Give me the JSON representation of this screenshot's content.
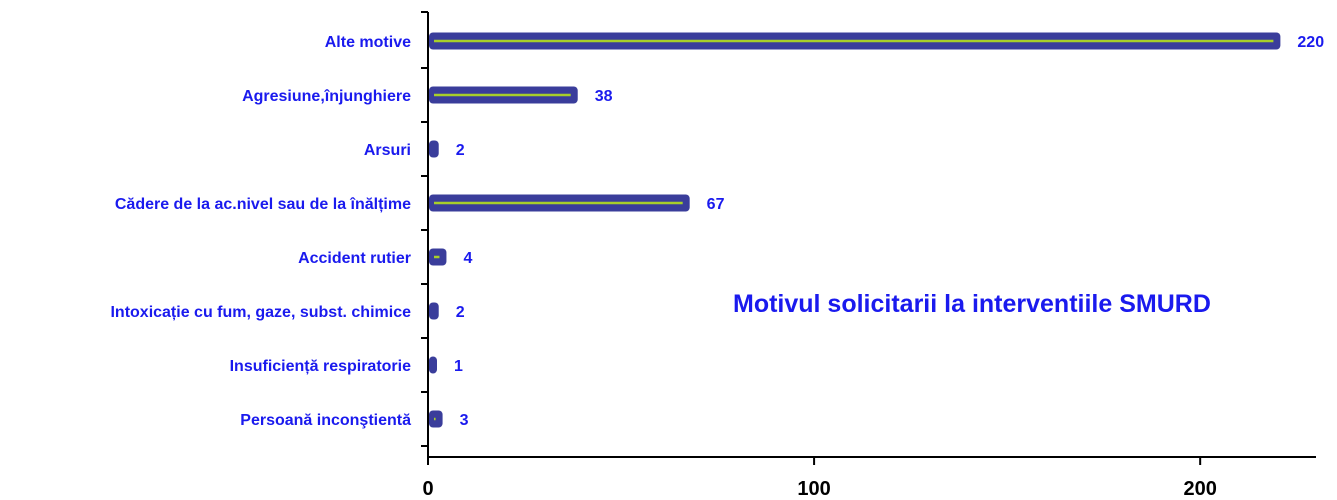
{
  "chart_data": {
    "type": "bar",
    "orientation": "horizontal",
    "title": "Motivul solicitarii la interventiile SMURD",
    "categories": [
      "Alte motive",
      "Agresiune,înjunghiere",
      "Arsuri",
      "Cădere de la ac.nivel sau de la înălțime",
      "Accident rutier",
      "Intoxicație cu fum, gaze, subst. chimice",
      "Insuficiență respiratorie",
      "Persoană inconştientă"
    ],
    "values": [
      220,
      38,
      2,
      67,
      4,
      2,
      1,
      3
    ],
    "value_labels": [
      "220",
      "38",
      "2",
      "67",
      "4",
      "2",
      "1",
      "3"
    ],
    "xlim": [
      0,
      230
    ],
    "xticks": [
      0,
      100,
      200
    ],
    "xtick_labels": [
      "0",
      "100",
      "200"
    ],
    "xlabel": "",
    "ylabel": "",
    "grid": false,
    "legend": "none",
    "colors": {
      "bar_fill": "#3a3d9b",
      "bar_highlight": "#a8cf2a",
      "category_text": "#1a1aee",
      "value_text": "#1a1aee",
      "title_text": "#1a1aee",
      "axis": "#000000"
    }
  }
}
